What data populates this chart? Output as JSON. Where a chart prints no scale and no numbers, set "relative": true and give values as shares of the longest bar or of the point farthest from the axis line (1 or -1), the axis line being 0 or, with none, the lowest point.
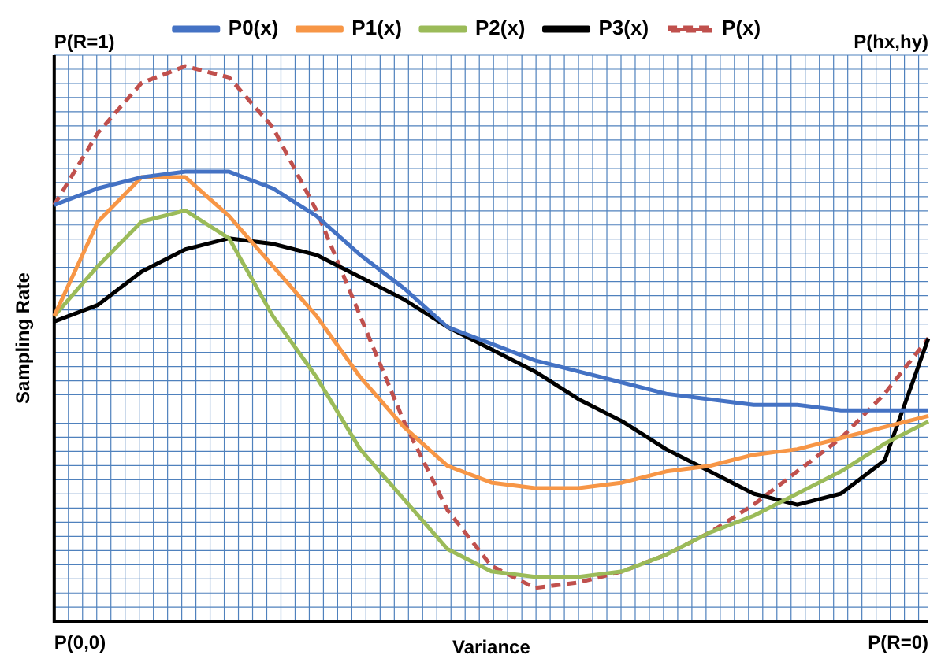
{
  "chart_data": {
    "type": "line",
    "relative": true,
    "grid": true,
    "legend": "top",
    "xlabel": "Variance",
    "ylabel": "Sampling Rate",
    "annotations": [
      "P(R=1)",
      "P(hx,hy)",
      "P(0,0)",
      "P(R=0)"
    ],
    "categories": [
      null,
      null,
      null,
      null,
      null,
      null,
      null,
      null,
      null,
      null,
      null,
      null,
      null,
      null,
      null,
      null,
      null,
      null,
      null,
      null,
      null
    ],
    "series": [
      {
        "name": "P0(x)",
        "color": "#4472c4",
        "values": [
          0.75,
          0.78,
          0.8,
          0.81,
          0.81,
          0.78,
          0.73,
          0.66,
          0.6,
          0.53,
          0.5,
          0.47,
          0.45,
          0.43,
          0.41,
          0.4,
          0.39,
          0.39,
          0.38,
          0.38,
          0.38
        ]
      },
      {
        "name": "P1(x)",
        "color": "#f79646",
        "values": [
          0.55,
          0.72,
          0.8,
          0.8,
          0.73,
          0.64,
          0.55,
          0.44,
          0.35,
          0.28,
          0.25,
          0.24,
          0.24,
          0.25,
          0.27,
          0.28,
          0.3,
          0.31,
          0.33,
          0.35,
          0.37
        ]
      },
      {
        "name": "P2(x)",
        "color": "#9bbb59",
        "values": [
          0.55,
          0.64,
          0.72,
          0.74,
          0.69,
          0.55,
          0.44,
          0.31,
          0.22,
          0.13,
          0.09,
          0.08,
          0.08,
          0.09,
          0.12,
          0.16,
          0.19,
          0.23,
          0.27,
          0.32,
          0.36
        ]
      },
      {
        "name": "P3(x)",
        "color": "#000000",
        "values": [
          0.54,
          0.57,
          0.63,
          0.67,
          0.69,
          0.68,
          0.66,
          0.62,
          0.58,
          0.53,
          0.49,
          0.45,
          0.4,
          0.36,
          0.31,
          0.27,
          0.23,
          0.21,
          0.23,
          0.29,
          0.51
        ]
      },
      {
        "name": "P(x)",
        "color": "#c0504d",
        "line_style": "dashed",
        "values": [
          0.75,
          0.88,
          0.97,
          1,
          0.98,
          0.89,
          0.74,
          0.55,
          0.36,
          0.2,
          0.1,
          0.06,
          0.07,
          0.09,
          0.12,
          0.16,
          0.21,
          0.27,
          0.33,
          0.41,
          0.51
        ]
      }
    ]
  }
}
